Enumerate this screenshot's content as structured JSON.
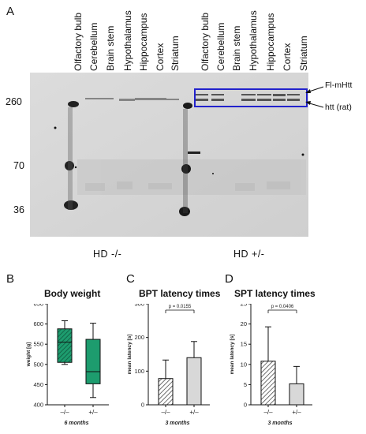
{
  "panel_a": {
    "letter": "A",
    "lanes": [
      "Olfactory bulb",
      "Cerebellum",
      "Brain stem",
      "Hypothalamus",
      "Hippocampus",
      "Cortex",
      "Striatum",
      "Olfactory bulb",
      "Cerebellum",
      "Brain stem",
      "Hypothalamus",
      "Hippocampus",
      "Cortex",
      "Striatum"
    ],
    "markers": [
      "260",
      "70",
      "36"
    ],
    "groups": [
      "HD -/-",
      "HD +/-"
    ],
    "annotations": {
      "top": "Fl-mHtt",
      "bottom": "htt (rat)"
    },
    "box_color": "#2222cc"
  },
  "chart_data": [
    {
      "type": "box",
      "letter": "B",
      "title": "Body weight",
      "ylabel": "weight [g]",
      "xnote": "6 months",
      "categories": [
        "–/–",
        "+/–"
      ],
      "ylim": [
        400,
        650
      ],
      "yticks": [
        400,
        450,
        500,
        550,
        600,
        650
      ],
      "boxes": [
        {
          "min": 500,
          "q1": 505,
          "median": 555,
          "q3": 588,
          "max": 608,
          "pattern": "hatched"
        },
        {
          "min": 418,
          "q1": 452,
          "median": 482,
          "q3": 562,
          "max": 602,
          "pattern": "solid"
        }
      ],
      "color": "#1d9c6e"
    },
    {
      "type": "bar",
      "letter": "C",
      "title": "BPT latency times",
      "ylabel": "mean latency [s]",
      "xnote": "3 months",
      "categories": [
        "–/–",
        "+/–"
      ],
      "values": [
        78,
        140
      ],
      "errors": [
        55,
        48
      ],
      "ylim": [
        0,
        300
      ],
      "yticks": [
        0,
        100,
        200,
        300
      ],
      "pvalue": "p = 0.0155",
      "color": "#d8d8d8"
    },
    {
      "type": "bar",
      "letter": "D",
      "title": "SPT latency times",
      "ylabel": "mean latency [s]",
      "xnote": "3 months",
      "categories": [
        "–/–",
        "+/–"
      ],
      "values": [
        10.8,
        5.2
      ],
      "errors": [
        8.5,
        4.3
      ],
      "ylim": [
        0,
        25
      ],
      "yticks": [
        0,
        5,
        10,
        15,
        20,
        25
      ],
      "pvalue": "p = 0.0406",
      "color": "#d8d8d8"
    }
  ]
}
